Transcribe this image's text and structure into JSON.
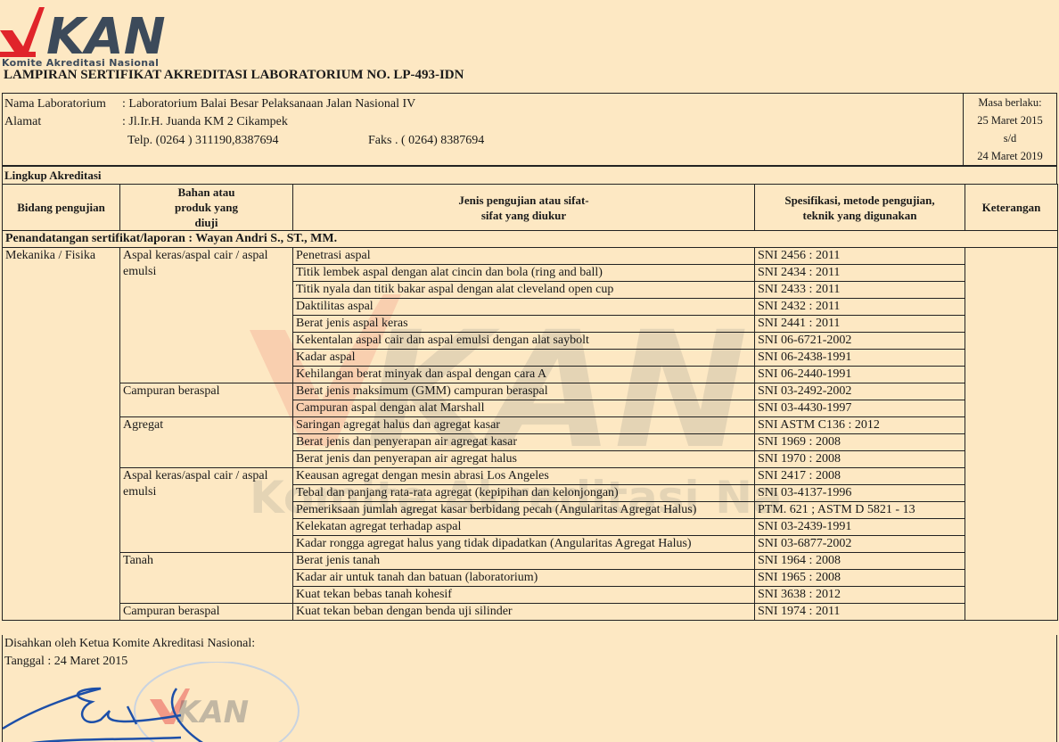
{
  "logo": {
    "text": "KAN",
    "subtitle": "Komite Akreditasi Nasional"
  },
  "title": "LAMPIRAN SERTIFIKAT AKREDITASI LABORATORIUM NO. LP-493-IDN",
  "info": {
    "nama_label": "Nama Laboratorium",
    "nama_value": ": Laboratorium Balai Besar Pelaksanaan Jalan Nasional IV",
    "alamat_label": "Alamat",
    "alamat_value": ": Jl.Ir.H. Juanda KM 2 Cikampek",
    "telp": "Telp.  (0264 ) 311190,8387694",
    "faks": "Faks . ( 0264) 8387694",
    "masa_label": "Masa berlaku:",
    "masa_from": "25 Maret 2015",
    "masa_sd": "s/d",
    "masa_to": "24 Maret 2019"
  },
  "lingkup": "Lingkup  Akreditasi",
  "headers": {
    "bidang": "Bidang pengujian",
    "bahan": "Bahan atau produk yang diuji",
    "jenis": "Jenis pengujian atau sifat-sifat  yang diukur",
    "spesifikasi": "Spesifikasi, metode pengujian, teknik yang digunakan",
    "keterangan": "Keterangan"
  },
  "penandatangan": "Penandatangan sertifikat/laporan : Wayan Andri S., ST., MM.",
  "bidang": "Mekanika / Fisika",
  "groups": [
    {
      "bahan": "Aspal keras/aspal cair / aspal emulsi",
      "tests": [
        [
          "Penetrasi aspal",
          "SNI 2456 : 2011"
        ],
        [
          "Titik lembek aspal dengan alat cincin dan bola (ring and ball)",
          "SNI 2434 : 2011"
        ],
        [
          "Titik nyala dan titik bakar aspal dengan alat cleveland open cup",
          "SNI 2433 : 2011"
        ],
        [
          "Daktilitas aspal",
          "SNI 2432 : 2011"
        ],
        [
          "Berat jenis aspal keras",
          "SNI 2441 : 2011"
        ],
        [
          "Kekentalan aspal cair dan aspal emulsi dengan alat saybolt",
          "SNI 06-6721-2002"
        ],
        [
          "Kadar aspal",
          "SNI 06-2438-1991"
        ],
        [
          "Kehilangan berat minyak dan aspal dengan cara A",
          "SNI 06-2440-1991"
        ]
      ]
    },
    {
      "bahan": "Campuran beraspal",
      "tests": [
        [
          "Berat jenis maksimum (GMM) campuran beraspal",
          "SNI 03-2492-2002"
        ],
        [
          "Campuran aspal dengan alat Marshall",
          "SNI 03-4430-1997"
        ]
      ]
    },
    {
      "bahan": "Agregat",
      "tests": [
        [
          "Saringan agregat halus dan agregat kasar",
          "SNI ASTM C136 : 2012"
        ],
        [
          "Berat jenis dan penyerapan air agregat kasar",
          "SNI 1969 : 2008"
        ],
        [
          "Berat jenis dan penyerapan air agregat halus",
          "SNI 1970 : 2008"
        ]
      ]
    },
    {
      "bahan": "Aspal keras/aspal cair / aspal emulsi",
      "tests": [
        [
          "Keausan agregat dengan mesin abrasi Los Angeles",
          "SNI 2417 : 2008"
        ],
        [
          "Tebal dan panjang rata-rata agregat (kepipihan dan kelonjongan)",
          "SNI 03-4137-1996"
        ],
        [
          "Pemeriksaan jumlah agregat kasar berbidang pecah (Angularitas Agregat Halus)",
          "PTM. 621 ; ASTM D 5821 - 13"
        ],
        [
          "Kelekatan agregat terhadap aspal",
          "SNI 03-2439-1991"
        ],
        [
          "Kadar rongga agregat halus yang tidak dipadatkan (Angularitas Agregat Halus)",
          "SNI 03-6877-2002"
        ]
      ]
    },
    {
      "bahan": "Tanah",
      "tests": [
        [
          "Berat jenis tanah",
          "SNI 1964 : 2008"
        ],
        [
          "Kadar air untuk tanah dan batuan (laboratorium)",
          "SNI 1965 : 2008"
        ],
        [
          "Kuat tekan bebas tanah kohesif",
          "SNI 3638 : 2012"
        ]
      ]
    },
    {
      "bahan": "Campuran beraspal",
      "tests": [
        [
          "Kuat tekan beban dengan benda uji silinder",
          "SNI 1974 : 2011"
        ]
      ]
    }
  ],
  "footer": {
    "disahkan": "Disahkan oleh Ketua Komite Akreditasi Nasional:",
    "tanggal": "Tanggal : 24 Maret 2015"
  },
  "colors": {
    "paper": "#fde8c3",
    "logo_red": "#e0242a",
    "logo_blue": "#3c4a5a",
    "signature": "#1d4fa8"
  }
}
